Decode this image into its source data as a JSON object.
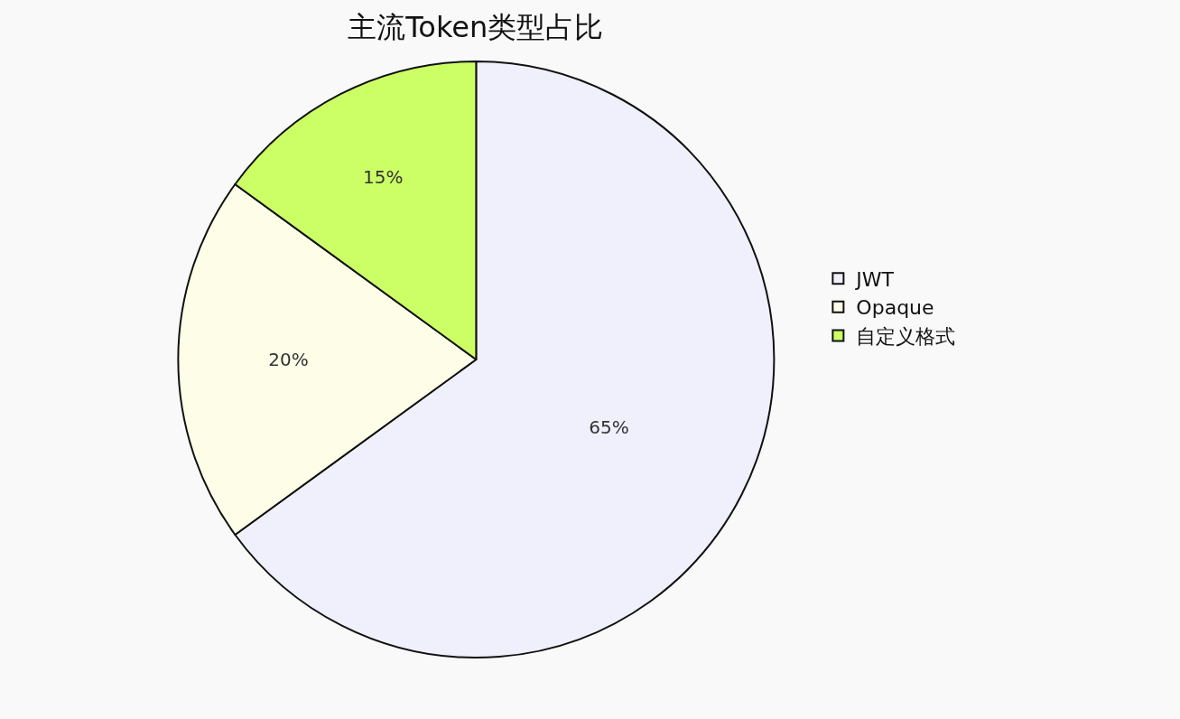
{
  "chart_data": {
    "type": "pie",
    "title": "主流Token类型占比",
    "categories": [
      "JWT",
      "Opaque",
      "自定义格式"
    ],
    "values": [
      65,
      20,
      15
    ],
    "colors": [
      "#f0f0fc",
      "#fefee8",
      "#ccff66"
    ],
    "value_labels": [
      "65%",
      "20%",
      "15%"
    ],
    "legend": "right"
  }
}
